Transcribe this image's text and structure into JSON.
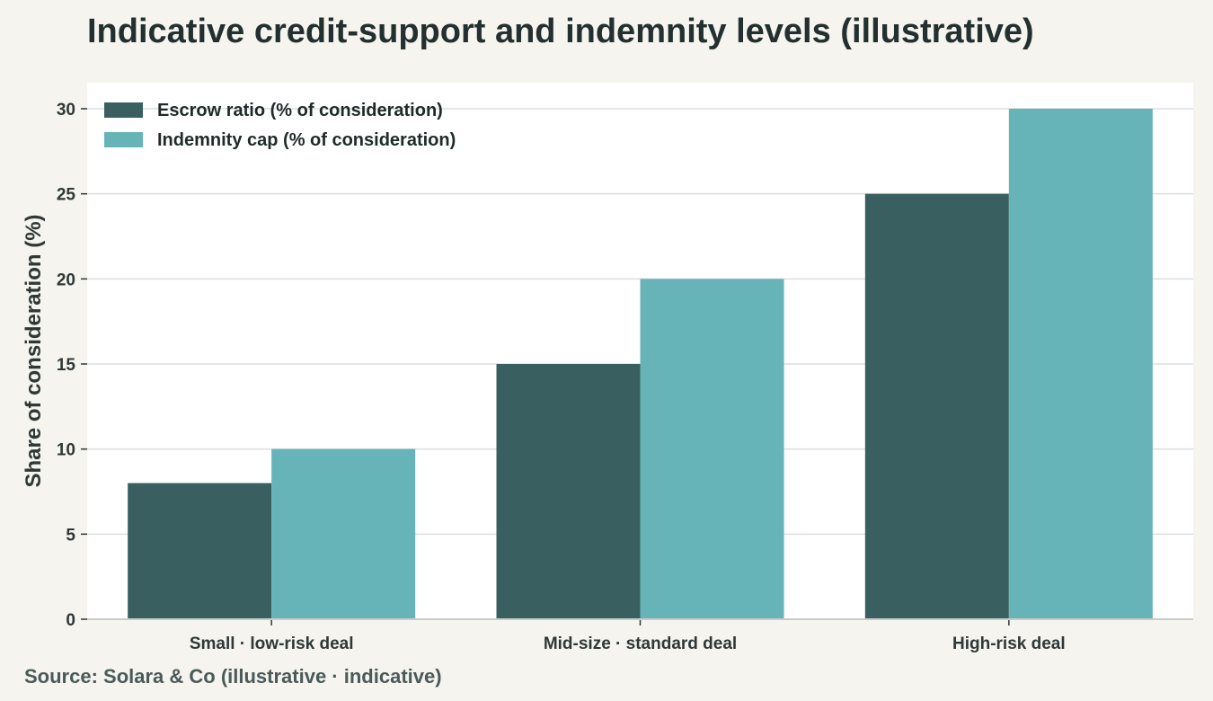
{
  "title": "Indicative credit-support and indemnity levels (illustrative)",
  "source": "Source: Solara & Co (illustrative · indicative)",
  "colors": {
    "escrow": "#3a5f60",
    "indemnity": "#66b4b8",
    "plot_bg": "#ffffff",
    "grid": "#dcdfdf"
  },
  "chart_data": {
    "type": "bar",
    "categories": [
      "Small · low-risk deal",
      "Mid-size · standard deal",
      "High-risk deal"
    ],
    "series": [
      {
        "name": "Escrow ratio (% of consideration)",
        "values": [
          8,
          15,
          25
        ]
      },
      {
        "name": "Indemnity cap (% of consideration)",
        "values": [
          10,
          20,
          30
        ]
      }
    ],
    "ylabel": "Share of consideration (%)",
    "xlabel": "",
    "ylim": [
      0,
      30
    ],
    "yticks": [
      0,
      5,
      10,
      15,
      20,
      25,
      30
    ],
    "grid": true,
    "legend_position": "top-left"
  }
}
